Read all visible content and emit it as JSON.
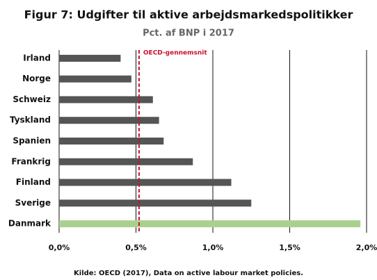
{
  "chart_data": {
    "type": "barh",
    "title": "Figur 7: Udgifter til aktive arbejdsmarkedspolitikker",
    "subtitle": "Pct. af BNP i 2017",
    "source": "Kilde: OECD (2017), Data on active labour market policies.",
    "categories": [
      "Irland",
      "Norge",
      "Schweiz",
      "Tyskland",
      "Spanien",
      "Frankrig",
      "Finland",
      "Sverige",
      "Danmark"
    ],
    "values": [
      0.4,
      0.47,
      0.61,
      0.65,
      0.68,
      0.87,
      1.12,
      1.25,
      1.96
    ],
    "colors": [
      "#555555",
      "#555555",
      "#555555",
      "#555555",
      "#555555",
      "#555555",
      "#555555",
      "#555555",
      "#a9d18e"
    ],
    "xlim": [
      0,
      2
    ],
    "xticks": [
      {
        "value": 0,
        "label": "0,0%"
      },
      {
        "value": 0.5,
        "label": "0,5%"
      },
      {
        "value": 1,
        "label": "1,0%"
      },
      {
        "value": 1.5,
        "label": "1,5%"
      },
      {
        "value": 2,
        "label": "2,0%"
      }
    ],
    "grid": true,
    "reference_line": {
      "label": "OECD-gennemsnit",
      "value": 0.52,
      "color": "#c8102e"
    }
  }
}
